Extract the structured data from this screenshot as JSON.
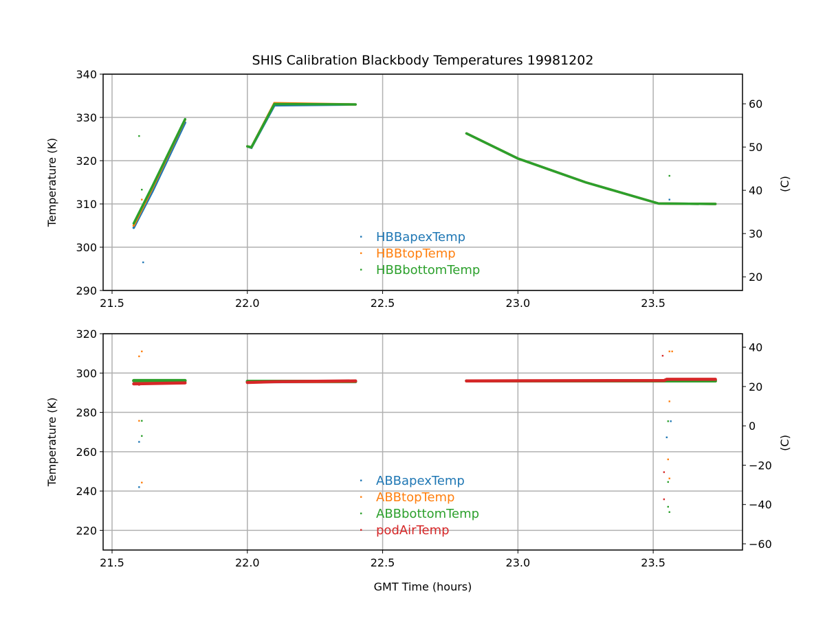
{
  "chart_data": [
    {
      "type": "scatter",
      "title": "SHIS Calibration Blackbody Temperatures 19981202",
      "xlabel": "",
      "ylabel": "Temperature (K)",
      "ylabel_right": "(C)",
      "xlim": [
        21.467,
        23.83
      ],
      "ylim": [
        290,
        340
      ],
      "xticks": [
        "21.5",
        "22.0",
        "22.5",
        "23.0",
        "23.5"
      ],
      "yticks": [
        "290",
        "300",
        "310",
        "320",
        "330",
        "340"
      ],
      "yticks_right": [
        "20",
        "30",
        "40",
        "50",
        "60"
      ],
      "grid": true,
      "legend_position": "bottom-center",
      "series": [
        {
          "name": "HBBapexTemp",
          "color": "#1f77b4",
          "segments": [
            [
              [
                21.58,
                304.5
              ],
              [
                21.65,
                313
              ],
              [
                21.77,
                328.8
              ]
            ],
            [
              [
                22.0,
                323.3
              ],
              [
                22.015,
                323
              ],
              [
                22.1,
                332.8
              ],
              [
                22.4,
                333
              ]
            ],
            [
              [
                22.81,
                326.3
              ],
              [
                23.0,
                320.5
              ],
              [
                23.25,
                315
              ],
              [
                23.52,
                310.1
              ],
              [
                23.73,
                310
              ]
            ]
          ],
          "outliers": [
            [
              21.615,
              296.5
            ],
            [
              23.56,
              311
            ]
          ]
        },
        {
          "name": "HBBtopTemp",
          "color": "#ff7f0e",
          "segments": [
            [
              [
                21.58,
                305
              ],
              [
                21.65,
                313.8
              ],
              [
                21.77,
                329.5
              ]
            ],
            [
              [
                22.0,
                323.3
              ],
              [
                22.015,
                323.1
              ],
              [
                22.1,
                333.3
              ],
              [
                22.4,
                333
              ]
            ],
            [
              [
                22.81,
                326.3
              ],
              [
                23.0,
                320.5
              ],
              [
                23.25,
                315
              ],
              [
                23.52,
                310.1
              ],
              [
                23.73,
                310
              ]
            ]
          ],
          "outliers": [
            [
              21.61,
              311
            ]
          ]
        },
        {
          "name": "HBBbottomTemp",
          "color": "#2ca02c",
          "segments": [
            [
              [
                21.58,
                305.5
              ],
              [
                21.65,
                314.2
              ],
              [
                21.77,
                329.6
              ]
            ],
            [
              [
                22.0,
                323.3
              ],
              [
                22.015,
                323.1
              ],
              [
                22.1,
                333.1
              ],
              [
                22.4,
                333
              ]
            ],
            [
              [
                22.81,
                326.3
              ],
              [
                23.0,
                320.5
              ],
              [
                23.25,
                315
              ],
              [
                23.52,
                310.1
              ],
              [
                23.73,
                310
              ]
            ]
          ],
          "outliers": [
            [
              21.6,
              325.7
            ],
            [
              21.61,
              313.3
            ],
            [
              23.56,
              316.5
            ]
          ]
        }
      ]
    },
    {
      "type": "scatter",
      "title": "",
      "xlabel": "GMT Time (hours)",
      "ylabel": "Temperature (K)",
      "ylabel_right": "(C)",
      "xlim": [
        21.467,
        23.83
      ],
      "ylim": [
        210,
        320
      ],
      "xticks": [
        "21.5",
        "22.0",
        "22.5",
        "23.0",
        "23.5"
      ],
      "yticks": [
        "220",
        "240",
        "260",
        "280",
        "300",
        "320"
      ],
      "yticks_right": [
        "−60",
        "−40",
        "−20",
        "0",
        "20",
        "40"
      ],
      "grid": true,
      "legend_position": "bottom-center",
      "series": [
        {
          "name": "ABBapexTemp",
          "color": "#1f77b4",
          "segments": [
            [
              [
                21.58,
                296
              ],
              [
                21.77,
                296
              ]
            ],
            [
              [
                22.0,
                295.6
              ],
              [
                22.4,
                295.6
              ]
            ],
            [
              [
                22.81,
                296
              ],
              [
                23.73,
                296
              ]
            ]
          ],
          "outliers": [
            [
              21.6,
              265
            ],
            [
              21.6,
              242
            ],
            [
              23.565,
              275.5
            ],
            [
              23.55,
              267.3
            ]
          ]
        },
        {
          "name": "ABBtopTemp",
          "color": "#ff7f0e",
          "segments": [
            [
              [
                21.58,
                296.1
              ],
              [
                21.77,
                296.1
              ]
            ],
            [
              [
                22.0,
                295.7
              ],
              [
                22.4,
                295.7
              ]
            ],
            [
              [
                22.81,
                296
              ],
              [
                23.73,
                296
              ]
            ]
          ],
          "outliers": [
            [
              21.6,
              308.5
            ],
            [
              21.61,
              311
            ],
            [
              21.6,
              275.7
            ],
            [
              21.61,
              244.3
            ],
            [
              23.56,
              311
            ],
            [
              23.57,
              311
            ],
            [
              23.56,
              285.6
            ],
            [
              23.555,
              256.1
            ],
            [
              23.56,
              246.4
            ]
          ]
        },
        {
          "name": "ABBbottomTemp",
          "color": "#2ca02c",
          "segments": [
            [
              [
                21.58,
                296.2
              ],
              [
                21.77,
                296.2
              ]
            ],
            [
              [
                22.0,
                295.8
              ],
              [
                22.4,
                295.8
              ]
            ],
            [
              [
                22.81,
                296
              ],
              [
                23.73,
                296
              ]
            ]
          ],
          "outliers": [
            [
              21.61,
              275.7
            ],
            [
              21.61,
              268
            ],
            [
              23.555,
              275.5
            ],
            [
              23.555,
              244.6
            ],
            [
              23.555,
              232
            ],
            [
              23.56,
              229.3
            ]
          ]
        },
        {
          "name": "podAirTemp",
          "color": "#d62728",
          "segments": [
            [
              [
                21.58,
                294.5
              ],
              [
                21.77,
                295
              ]
            ],
            [
              [
                22.0,
                295.2
              ],
              [
                22.1,
                295.6
              ],
              [
                22.4,
                296
              ]
            ],
            [
              [
                22.81,
                296
              ],
              [
                23.54,
                296.2
              ],
              [
                23.55,
                296.8
              ],
              [
                23.73,
                296.8
              ]
            ]
          ],
          "outliers": [
            [
              21.6,
              294
            ],
            [
              23.535,
              308.8
            ],
            [
              23.54,
              249.6
            ],
            [
              23.54,
              235.8
            ]
          ]
        }
      ]
    }
  ]
}
